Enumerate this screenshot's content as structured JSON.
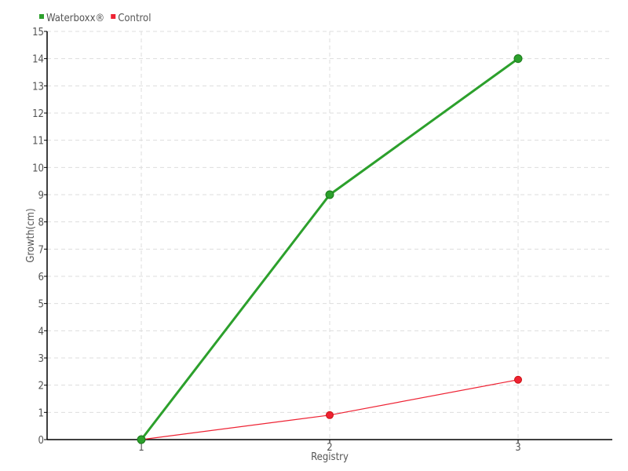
{
  "chart_data": {
    "type": "line",
    "title": "",
    "xlabel": "Registry",
    "ylabel": "Growth(cm)",
    "categories": [
      "1",
      "2",
      "3"
    ],
    "x": [
      1,
      2,
      3
    ],
    "xlim": [
      0.5,
      3.5
    ],
    "ylim": [
      0,
      15
    ],
    "yticks": [
      0,
      1,
      2,
      3,
      4,
      5,
      6,
      7,
      8,
      9,
      10,
      11,
      12,
      13,
      14,
      15
    ],
    "grid": true,
    "legend_position": "top-left",
    "series": [
      {
        "name": "Waterboxx®",
        "values": [
          0,
          9,
          14
        ],
        "color": "#2ca02c"
      },
      {
        "name": "Control",
        "values": [
          0,
          0.9,
          2.2
        ],
        "color": "#ee2233"
      }
    ]
  }
}
